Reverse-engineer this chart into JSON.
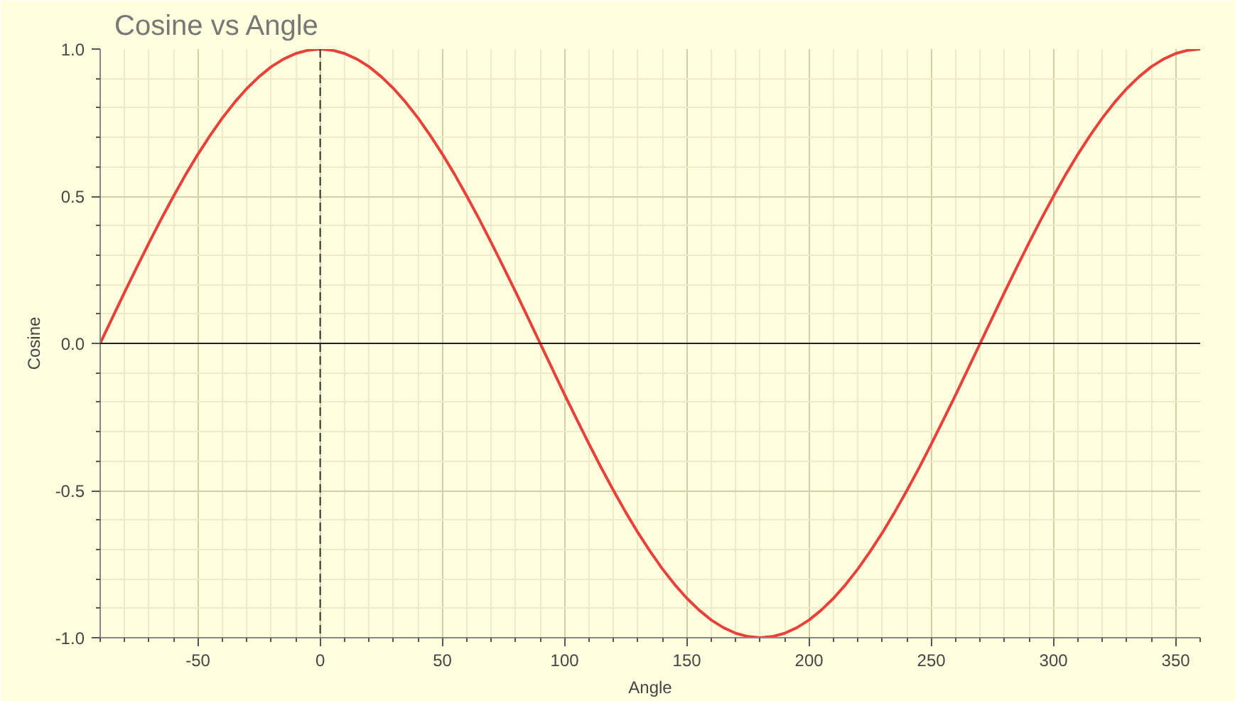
{
  "chart_data": {
    "type": "line",
    "title": "Cosine vs Angle",
    "xlabel": "Angle",
    "ylabel": "Cosine",
    "x": [
      -90,
      -85,
      -80,
      -75,
      -70,
      -65,
      -60,
      -55,
      -50,
      -45,
      -40,
      -35,
      -30,
      -25,
      -20,
      -15,
      -10,
      -5,
      0,
      5,
      10,
      15,
      20,
      25,
      30,
      35,
      40,
      45,
      50,
      55,
      60,
      65,
      70,
      75,
      80,
      85,
      90,
      95,
      100,
      105,
      110,
      115,
      120,
      125,
      130,
      135,
      140,
      145,
      150,
      155,
      160,
      165,
      170,
      175,
      180,
      185,
      190,
      195,
      200,
      205,
      210,
      215,
      220,
      225,
      230,
      235,
      240,
      245,
      250,
      255,
      260,
      265,
      270,
      275,
      280,
      285,
      290,
      295,
      300,
      305,
      310,
      315,
      320,
      325,
      330,
      335,
      340,
      345,
      350,
      355,
      360
    ],
    "series": [
      {
        "color": "#e8413a",
        "values": [
          0,
          0.087,
          0.174,
          0.259,
          0.342,
          0.423,
          0.5,
          0.574,
          0.643,
          0.707,
          0.766,
          0.819,
          0.866,
          0.906,
          0.94,
          0.966,
          0.985,
          0.996,
          1,
          0.996,
          0.985,
          0.966,
          0.94,
          0.906,
          0.866,
          0.819,
          0.766,
          0.707,
          0.643,
          0.574,
          0.5,
          0.423,
          0.342,
          0.259,
          0.174,
          0.087,
          0,
          -0.087,
          -0.174,
          -0.259,
          -0.342,
          -0.423,
          -0.5,
          -0.574,
          -0.643,
          -0.707,
          -0.766,
          -0.819,
          -0.866,
          -0.906,
          -0.94,
          -0.966,
          -0.985,
          -0.996,
          -1,
          -0.996,
          -0.985,
          -0.966,
          -0.94,
          -0.906,
          -0.866,
          -0.819,
          -0.766,
          -0.707,
          -0.643,
          -0.574,
          -0.5,
          -0.423,
          -0.342,
          -0.259,
          -0.174,
          -0.087,
          0,
          0.087,
          0.174,
          0.259,
          0.342,
          0.423,
          0.5,
          0.574,
          0.643,
          0.707,
          0.766,
          0.819,
          0.866,
          0.906,
          0.94,
          0.966,
          0.985,
          0.996,
          1
        ]
      }
    ],
    "xlim": [
      -90,
      360
    ],
    "ylim": [
      -1,
      1
    ],
    "xticks": [
      -50,
      0,
      50,
      100,
      150,
      200,
      250,
      300,
      350
    ],
    "yticks": [
      {
        "value": -1,
        "label": "-1.0"
      },
      {
        "value": -0.5,
        "label": "-0.5"
      },
      {
        "value": 0,
        "label": "0.0"
      },
      {
        "value": 0.5,
        "label": "0.5"
      },
      {
        "value": 1,
        "label": "1.0"
      }
    ],
    "ref_lines": [
      {
        "axis": "x",
        "value": 0,
        "color": "#333333",
        "line_style": "dashed"
      },
      {
        "axis": "y",
        "value": 0,
        "color": "#222222",
        "line_style": "solid"
      }
    ],
    "grid": true,
    "marker": "none",
    "line_style": "solid"
  }
}
